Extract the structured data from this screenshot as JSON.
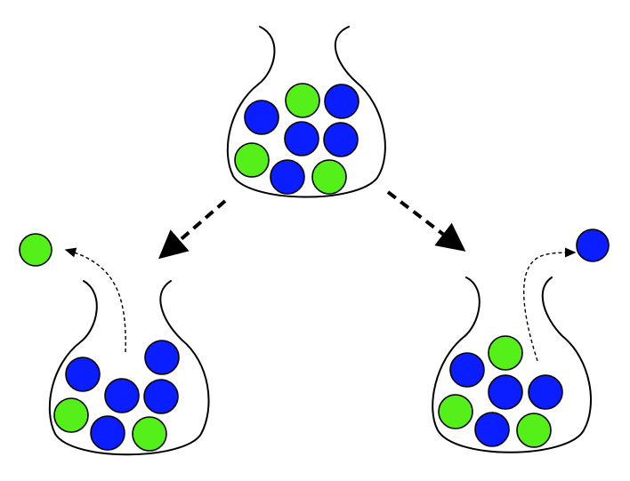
{
  "colors": {
    "blue": "#0a1eff",
    "green": "#55f01a",
    "outline": "#000000",
    "background": "#ffffff"
  },
  "urns": [
    {
      "id": "top",
      "balls": [
        "green",
        "blue",
        "blue",
        "blue",
        "blue",
        "green",
        "blue",
        "green"
      ]
    },
    {
      "id": "bottom-left",
      "balls": [
        "blue",
        "blue",
        "blue",
        "blue",
        "green",
        "blue",
        "green"
      ],
      "drawn_ball": "green"
    },
    {
      "id": "bottom-right",
      "balls": [
        "blue",
        "green",
        "blue",
        "blue",
        "green",
        "blue",
        "green"
      ],
      "drawn_ball": "blue"
    }
  ]
}
